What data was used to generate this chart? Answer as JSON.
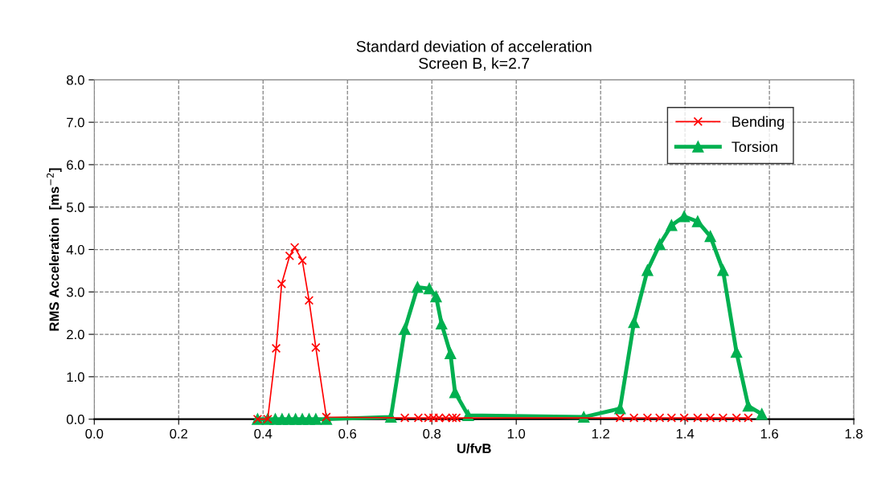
{
  "chart_data": {
    "type": "line",
    "title": "Standard deviation of acceleration\nScreen B, k=2.7",
    "xlabel": "U/fvB",
    "ylabel": "RMS Acceleration  [ms$^{−2}$]",
    "series": [
      {
        "name": "Bending",
        "color": "#ff0000",
        "marker": "cross",
        "x": [
          0.387,
          0.411,
          0.431,
          0.444,
          0.463,
          0.475,
          0.493,
          0.509,
          0.525,
          0.55,
          0.736,
          0.768,
          0.792,
          0.804,
          0.817,
          0.833,
          0.849,
          0.858,
          1.246,
          1.279,
          1.311,
          1.34,
          1.368,
          1.398,
          1.43,
          1.46,
          1.49,
          1.522,
          1.55
        ],
        "values": [
          0.0,
          0.0,
          1.67,
          3.19,
          3.85,
          4.05,
          3.74,
          2.8,
          1.69,
          0.05,
          0.03,
          0.03,
          0.03,
          0.03,
          0.03,
          0.03,
          0.03,
          0.03,
          0.03,
          0.03,
          0.03,
          0.03,
          0.03,
          0.03,
          0.03,
          0.03,
          0.03,
          0.03,
          0.03
        ]
      },
      {
        "name": "Torsion",
        "color": "#00b050",
        "marker": "triangle",
        "x": [
          0.387,
          0.411,
          0.429,
          0.445,
          0.461,
          0.477,
          0.493,
          0.509,
          0.525,
          0.55,
          0.703,
          0.736,
          0.766,
          0.794,
          0.81,
          0.823,
          0.844,
          0.855,
          0.886,
          1.16,
          1.246,
          1.279,
          1.311,
          1.34,
          1.368,
          1.398,
          1.43,
          1.46,
          1.49,
          1.522,
          1.55,
          1.582
        ],
        "values": [
          0.0,
          0.0,
          0.0,
          0.0,
          0.0,
          0.0,
          0.0,
          0.0,
          0.0,
          0.0,
          0.05,
          2.12,
          3.11,
          3.08,
          2.89,
          2.25,
          1.55,
          0.63,
          0.09,
          0.05,
          0.25,
          2.28,
          3.51,
          4.12,
          4.57,
          4.78,
          4.66,
          4.31,
          3.51,
          1.58,
          0.31,
          0.12
        ]
      }
    ],
    "xlim": [
      0,
      1.8
    ],
    "ylim": [
      0,
      8
    ],
    "xticks": [
      {
        "value": 0,
        "label": "0.0"
      },
      {
        "value": 0.2,
        "label": "0.2"
      },
      {
        "value": 0.4,
        "label": "0.4"
      },
      {
        "value": 0.6,
        "label": "0.6"
      },
      {
        "value": 0.8,
        "label": "0.8"
      },
      {
        "value": 1.0,
        "label": "1.0"
      },
      {
        "value": 1.2,
        "label": "1.2"
      },
      {
        "value": 1.4,
        "label": "1.4"
      },
      {
        "value": 1.6,
        "label": "1.6"
      },
      {
        "value": 1.8,
        "label": "1.8"
      }
    ],
    "yticks": [
      {
        "value": 0,
        "label": "0.0"
      },
      {
        "value": 1,
        "label": "1.0"
      },
      {
        "value": 2,
        "label": "2.0"
      },
      {
        "value": 3,
        "label": "3.0"
      },
      {
        "value": 4,
        "label": "4.0"
      },
      {
        "value": 5,
        "label": "5.0"
      },
      {
        "value": 6,
        "label": "6.0"
      },
      {
        "value": 7,
        "label": "7.0"
      },
      {
        "value": 8,
        "label": "8.0"
      }
    ],
    "grid": true,
    "legend": "top right"
  }
}
